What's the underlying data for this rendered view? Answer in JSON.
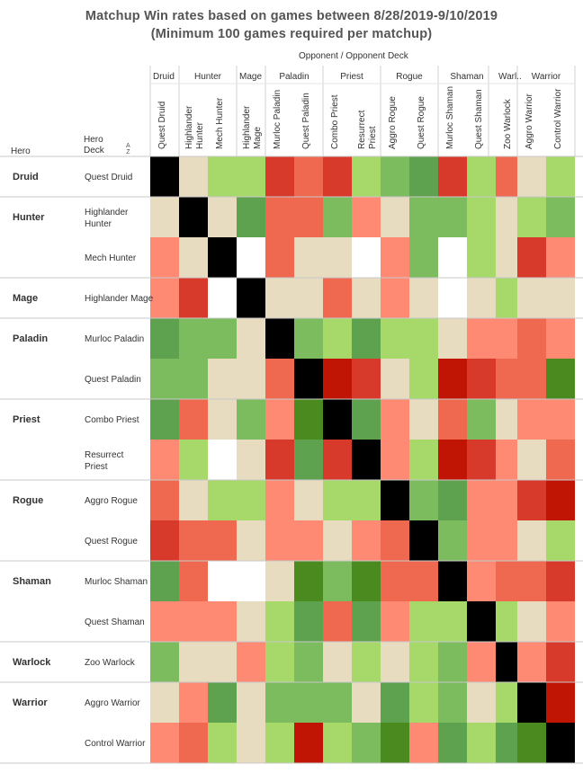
{
  "title": {
    "line1": "Matchup Win rates based on games between 8/28/2019-9/10/2019",
    "line2": "(Minimum 100 games required per matchup)"
  },
  "headers": {
    "opponent": "Opponent  /  Opponent Deck",
    "hero": "Hero",
    "deck": "Hero\nDeck",
    "sort_icon": "sort-ascending-icon"
  },
  "palette": {
    "0": "#000000",
    "1": "#ffffff",
    "2": "#e8dcc0",
    "3": "#a6d96a",
    "4": "#7dbc5e",
    "5": "#5ea14f",
    "6": "#4b8a1f",
    "7": "#ff8a74",
    "8": "#ef6850",
    "9": "#d73a2a",
    "10": "#c01505"
  },
  "chart_data": {
    "type": "heatmap",
    "x_groups": [
      {
        "hero": "Druid",
        "decks": [
          "Quest Druid"
        ]
      },
      {
        "hero": "Hunter",
        "decks": [
          "Highlander Hunter",
          "Mech Hunter"
        ]
      },
      {
        "hero": "Mage",
        "decks": [
          "Highlander Mage"
        ]
      },
      {
        "hero": "Paladin",
        "decks": [
          "Murloc Paladin",
          "Quest Paladin"
        ]
      },
      {
        "hero": "Priest",
        "decks": [
          "Combo Priest",
          "Resurrect Priest"
        ]
      },
      {
        "hero": "Rogue",
        "decks": [
          "Aggro Rogue",
          "Quest Rogue"
        ]
      },
      {
        "hero": "Shaman",
        "decks": [
          "Murloc Shaman",
          "Quest Shaman"
        ]
      },
      {
        "hero": "Warl..",
        "decks": [
          "Zoo Warlock"
        ]
      },
      {
        "hero": "Warrior",
        "decks": [
          "Aggro Warrior",
          "Control Warrior"
        ]
      }
    ],
    "y_groups": [
      {
        "hero": "Druid",
        "decks": [
          "Quest Druid"
        ]
      },
      {
        "hero": "Hunter",
        "decks": [
          "Highlander Hunter",
          "Mech Hunter"
        ]
      },
      {
        "hero": "Mage",
        "decks": [
          "Highlander Mage"
        ]
      },
      {
        "hero": "Paladin",
        "decks": [
          "Murloc Paladin",
          "Quest Paladin"
        ]
      },
      {
        "hero": "Priest",
        "decks": [
          "Combo Priest",
          "Resurrect Priest"
        ]
      },
      {
        "hero": "Rogue",
        "decks": [
          "Aggro Rogue",
          "Quest Rogue"
        ]
      },
      {
        "hero": "Shaman",
        "decks": [
          "Murloc Shaman",
          "Quest Shaman"
        ]
      },
      {
        "hero": "Warlock",
        "decks": [
          "Zoo Warlock"
        ]
      },
      {
        "hero": "Warrior",
        "decks": [
          "Aggro Warrior",
          "Control Warrior"
        ]
      }
    ],
    "color_levels": "0=mirror (black), 1=no data (white), 2=neutral, 3-6 increasingly favorable (green), 7-10 increasingly unfavorable (red)",
    "rows": [
      [
        0,
        2,
        3,
        3,
        9,
        8,
        9,
        3,
        4,
        5,
        9,
        3,
        8,
        2,
        3
      ],
      [
        2,
        0,
        2,
        5,
        8,
        8,
        4,
        7,
        2,
        4,
        4,
        3,
        2,
        3,
        4
      ],
      [
        7,
        2,
        0,
        1,
        8,
        2,
        2,
        1,
        7,
        4,
        1,
        3,
        2,
        9,
        7
      ],
      [
        7,
        9,
        1,
        0,
        2,
        2,
        8,
        2,
        7,
        2,
        1,
        2,
        3,
        2,
        2
      ],
      [
        5,
        4,
        4,
        2,
        0,
        4,
        3,
        5,
        3,
        3,
        2,
        7,
        7,
        8,
        7
      ],
      [
        4,
        4,
        2,
        2,
        8,
        0,
        10,
        9,
        2,
        3,
        10,
        9,
        8,
        8,
        6
      ],
      [
        5,
        8,
        2,
        4,
        7,
        6,
        0,
        5,
        7,
        2,
        8,
        4,
        2,
        7,
        7
      ],
      [
        7,
        3,
        1,
        2,
        9,
        5,
        9,
        0,
        7,
        3,
        10,
        9,
        7,
        2,
        8
      ],
      [
        8,
        2,
        3,
        3,
        7,
        2,
        3,
        3,
        0,
        4,
        5,
        7,
        7,
        9,
        10
      ],
      [
        9,
        8,
        8,
        2,
        7,
        7,
        2,
        7,
        8,
        0,
        4,
        7,
        7,
        2,
        3
      ],
      [
        5,
        8,
        1,
        1,
        2,
        6,
        4,
        6,
        8,
        8,
        0,
        7,
        8,
        8,
        9
      ],
      [
        7,
        7,
        7,
        2,
        3,
        5,
        8,
        5,
        7,
        3,
        3,
        0,
        3,
        2,
        7
      ],
      [
        4,
        2,
        2,
        7,
        3,
        4,
        2,
        3,
        2,
        3,
        4,
        7,
        0,
        7,
        9
      ],
      [
        2,
        7,
        5,
        2,
        4,
        4,
        4,
        2,
        5,
        3,
        4,
        2,
        3,
        0,
        10
      ],
      [
        7,
        8,
        3,
        2,
        3,
        10,
        3,
        4,
        6,
        7,
        5,
        3,
        5,
        6,
        0
      ]
    ]
  }
}
